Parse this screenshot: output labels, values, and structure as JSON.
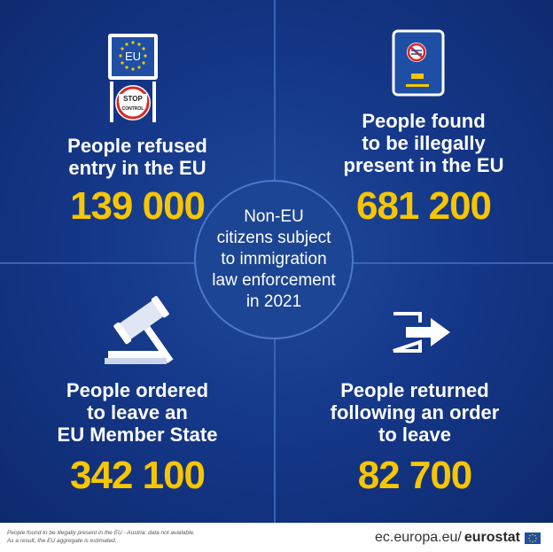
{
  "center": {
    "text": "Non-EU\ncitizens subject\nto immigration\nlaw enforcement\nin 2021"
  },
  "quadrants": [
    {
      "id": "refused",
      "label": "People refused\nentry in the EU",
      "value": "139 000",
      "icon": "eu-stop-sign-icon",
      "sign_text": "EU",
      "stop_text": "STOP",
      "control_text": "CONTROL"
    },
    {
      "id": "illegal",
      "label": "People found\nto be illegally\npresent in the EU",
      "value": "681 200",
      "icon": "passport-icon"
    },
    {
      "id": "ordered",
      "label": "People ordered\nto leave an\nEU Member State",
      "value": "342 100",
      "icon": "gavel-icon"
    },
    {
      "id": "returned",
      "label": "People returned\nfollowing an order\nto leave",
      "value": "82 700",
      "icon": "exit-arrow-icon"
    }
  ],
  "footer": {
    "note": "People found to be illegally present in the EU - Austria: data not available.\nAs a result, the EU aggregate is estimated.",
    "brand_prefix": "ec.europa.eu/",
    "brand_name": "eurostat"
  },
  "colors": {
    "background": "#15388a",
    "value": "#f7c600",
    "label": "#ffffff"
  }
}
